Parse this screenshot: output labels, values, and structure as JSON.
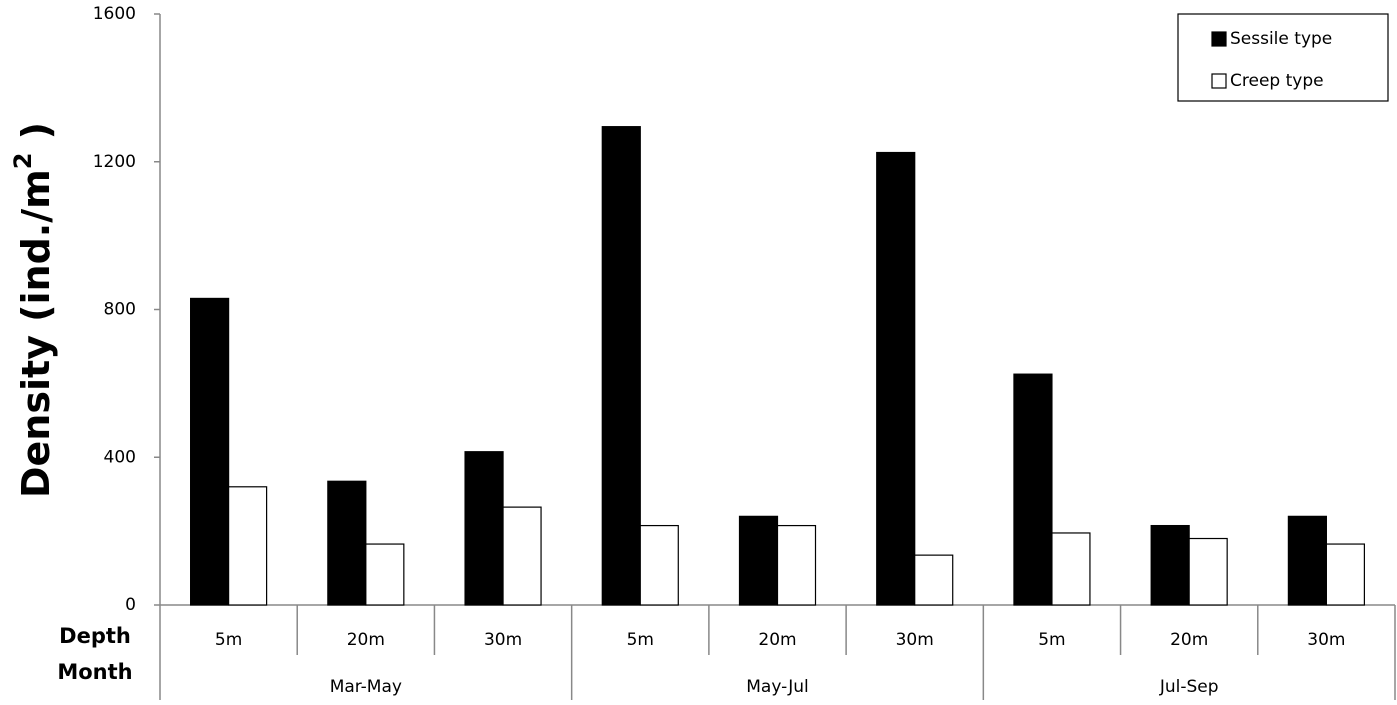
{
  "chart_data": {
    "type": "bar",
    "y_label_parts": [
      "Density (ind./m",
      "2",
      " )"
    ],
    "row_labels": [
      "Depth",
      "Month"
    ],
    "categories": [
      "5m",
      "20m",
      "30m",
      "5m",
      "20m",
      "30m",
      "5m",
      "20m",
      "30m"
    ],
    "group_labels": [
      "Mar-May",
      "May-Jul",
      "Jul-Sep"
    ],
    "series": [
      {
        "name": "Sessile type",
        "color": "#000000",
        "values": [
          830,
          335,
          415,
          1295,
          240,
          1225,
          625,
          215,
          240
        ]
      },
      {
        "name": "Creep type",
        "color": "#ffffff",
        "values": [
          320,
          165,
          265,
          215,
          215,
          135,
          195,
          180,
          165
        ]
      }
    ],
    "ylim": [
      0,
      1600
    ],
    "yticks": [
      0,
      400,
      800,
      1200,
      1600
    ],
    "legend": "upper right"
  }
}
